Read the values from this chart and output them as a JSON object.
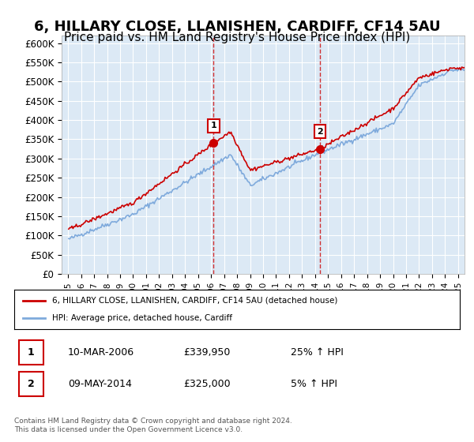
{
  "title": "6, HILLARY CLOSE, LLANISHEN, CARDIFF, CF14 5AU",
  "subtitle": "Price paid vs. HM Land Registry's House Price Index (HPI)",
  "title_fontsize": 13,
  "subtitle_fontsize": 11,
  "ylabel_ticks": [
    "£0",
    "£50K",
    "£100K",
    "£150K",
    "£200K",
    "£250K",
    "£300K",
    "£350K",
    "£400K",
    "£450K",
    "£500K",
    "£550K",
    "£600K"
  ],
  "ytick_values": [
    0,
    50000,
    100000,
    150000,
    200000,
    250000,
    300000,
    350000,
    400000,
    450000,
    500000,
    550000,
    600000
  ],
  "ylim": [
    0,
    620000
  ],
  "xlim_start": 1994.5,
  "xlim_end": 2025.5,
  "background_color": "#dce9f5",
  "plot_bg_color": "#dce9f5",
  "line_color_hpi": "#7faadc",
  "line_color_sold": "#cc0000",
  "marker_color": "#cc0000",
  "sale1_x": 2006.19,
  "sale1_y": 339950,
  "sale2_x": 2014.36,
  "sale2_y": 325000,
  "vline1_x": 2006.19,
  "vline2_x": 2014.36,
  "legend_sold": "6, HILLARY CLOSE, LLANISHEN, CARDIFF, CF14 5AU (detached house)",
  "legend_hpi": "HPI: Average price, detached house, Cardiff",
  "annotation1_label": "1",
  "annotation2_label": "2",
  "table_rows": [
    [
      "1",
      "10-MAR-2006",
      "£339,950",
      "25% ↑ HPI"
    ],
    [
      "2",
      "09-MAY-2014",
      "£325,000",
      "5% ↑ HPI"
    ]
  ],
  "footnote": "Contains HM Land Registry data © Crown copyright and database right 2024.\nThis data is licensed under the Open Government Licence v3.0.",
  "xtick_years": [
    1995,
    1996,
    1997,
    1998,
    1999,
    2000,
    2001,
    2002,
    2003,
    2004,
    2005,
    2006,
    2007,
    2008,
    2009,
    2010,
    2011,
    2012,
    2013,
    2014,
    2015,
    2016,
    2017,
    2018,
    2019,
    2020,
    2021,
    2022,
    2023,
    2024,
    2025
  ]
}
